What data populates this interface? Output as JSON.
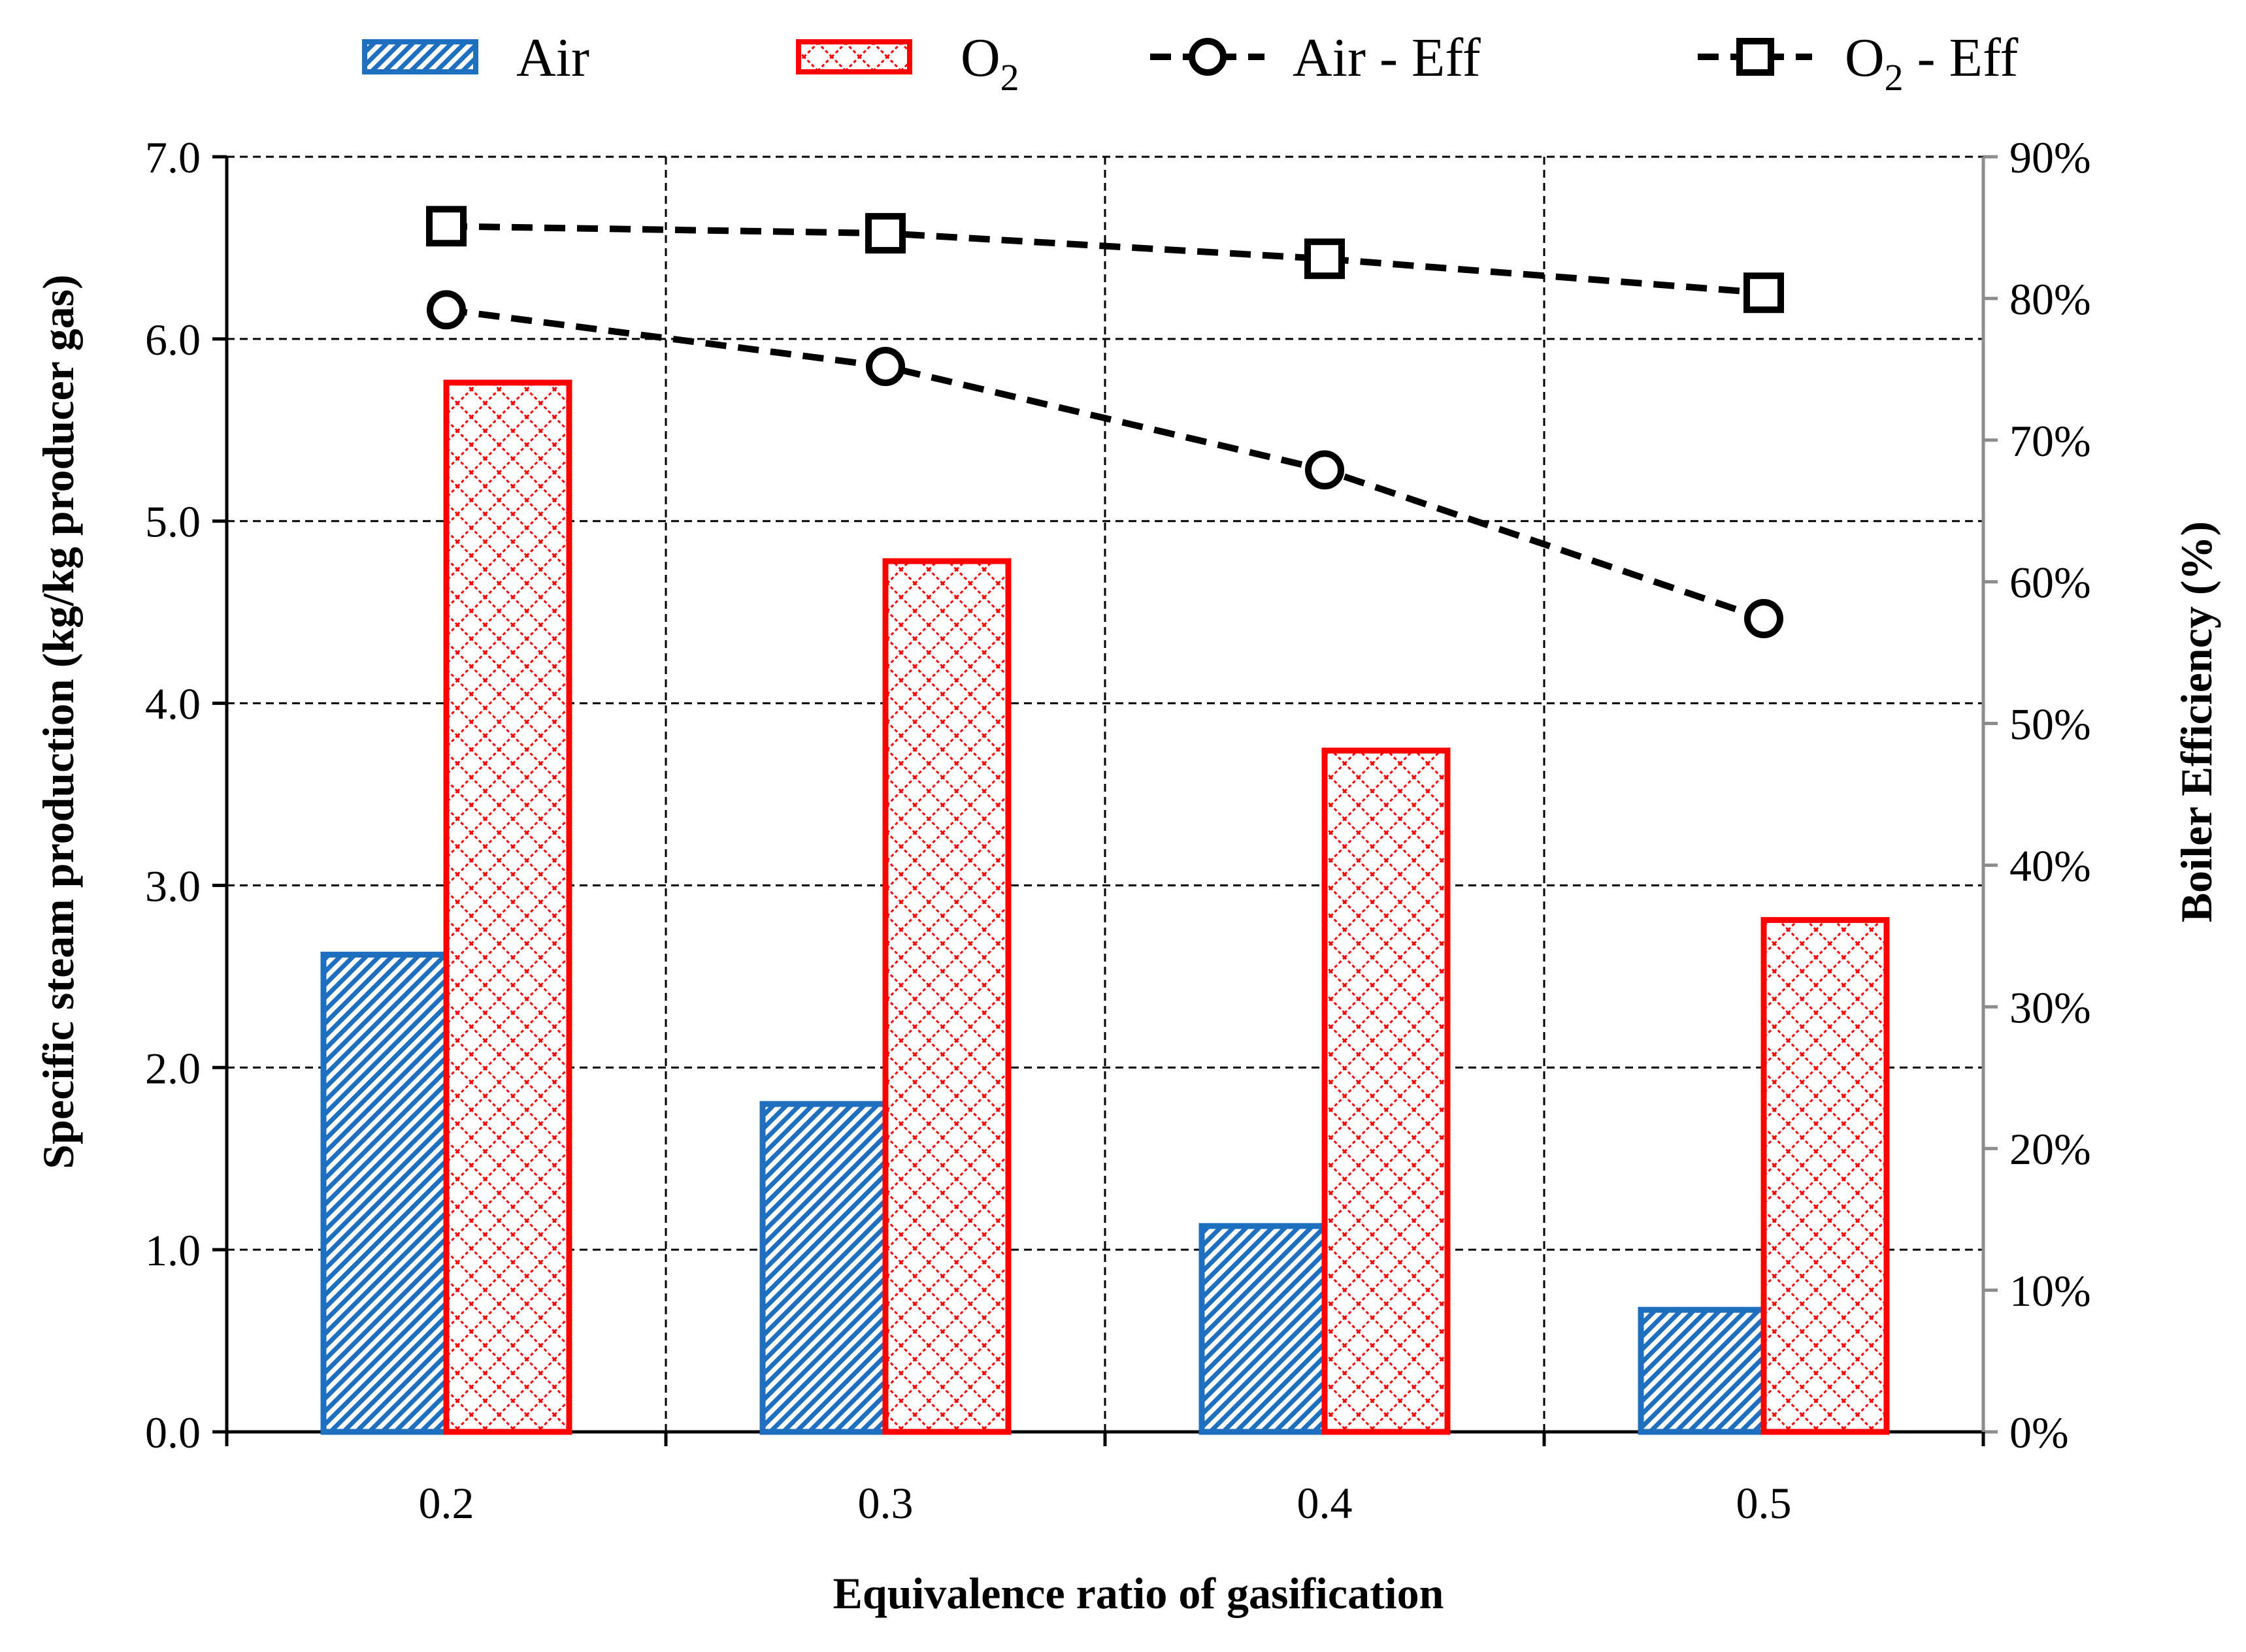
{
  "chart_data": {
    "type": "bar",
    "title": "",
    "categories": [
      "0.2",
      "0.3",
      "0.4",
      "0.5"
    ],
    "xlabel": "Equivalence ratio of gasification",
    "ylabel": "Specific steam production (kg/kg producer gas)",
    "y2label": "Boiler Efficiency (%)",
    "ylim": [
      0,
      7
    ],
    "y2lim": [
      0,
      90
    ],
    "yticks": [
      "0.0",
      "1.0",
      "2.0",
      "3.0",
      "4.0",
      "5.0",
      "6.0",
      "7.0"
    ],
    "y2ticks": [
      "0%",
      "10%",
      "20%",
      "30%",
      "40%",
      "50%",
      "60%",
      "70%",
      "80%",
      "90%"
    ],
    "grid": true,
    "legend_position": "top",
    "series": [
      {
        "name": "Air",
        "kind": "bar",
        "axis": "left",
        "color": "#1f6fc0",
        "values": [
          2.62,
          1.8,
          1.13,
          0.67
        ]
      },
      {
        "name": "O2",
        "kind": "bar",
        "axis": "left",
        "color": "#ff0000",
        "values": [
          5.76,
          4.78,
          3.74,
          2.81
        ]
      },
      {
        "name": "Air - Eff",
        "kind": "line",
        "axis": "right",
        "marker": "circle",
        "color": "#000000",
        "values": [
          79.2,
          75.2,
          67.9,
          57.4
        ]
      },
      {
        "name": "O2 - Eff",
        "kind": "line",
        "axis": "right",
        "marker": "square",
        "color": "#000000",
        "values": [
          85.1,
          84.6,
          82.8,
          80.4
        ]
      }
    ]
  },
  "legend": {
    "items": [
      {
        "label": "Air",
        "sub": ""
      },
      {
        "label": "O",
        "sub": "2"
      },
      {
        "label": "Air - Eff",
        "sub": ""
      },
      {
        "label": "O",
        "sub": "2",
        "suffix": " - Eff"
      }
    ]
  }
}
